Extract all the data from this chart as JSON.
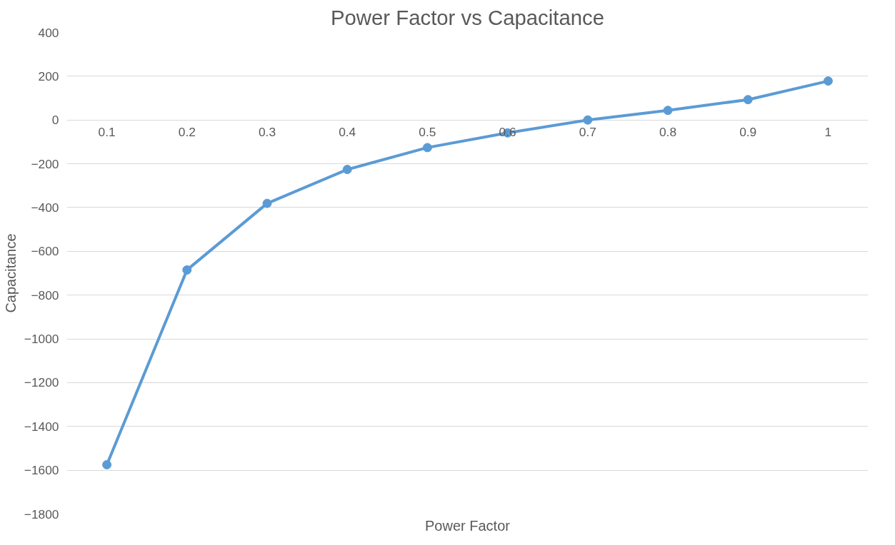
{
  "chart_data": {
    "type": "line",
    "title": "Power Factor vs Capacitance",
    "xlabel": "Power Factor",
    "ylabel": "Capacitance",
    "categories": [
      "0.1",
      "0.2",
      "0.3",
      "0.4",
      "0.5",
      "0.6",
      "0.7",
      "0.8",
      "0.9",
      "1"
    ],
    "series": [
      {
        "color": "#5b9bd5",
        "values": [
          -1575,
          -685,
          -381,
          -226,
          -126,
          -59,
          0,
          44,
          93,
          178
        ]
      }
    ],
    "ylim": [
      -1800,
      400
    ],
    "yticks": [
      -1800,
      -1600,
      -1400,
      -1200,
      -1000,
      -800,
      -600,
      -400,
      -200,
      0,
      200,
      400
    ],
    "grid": "y",
    "marker": "circle",
    "line_style": "solid"
  }
}
